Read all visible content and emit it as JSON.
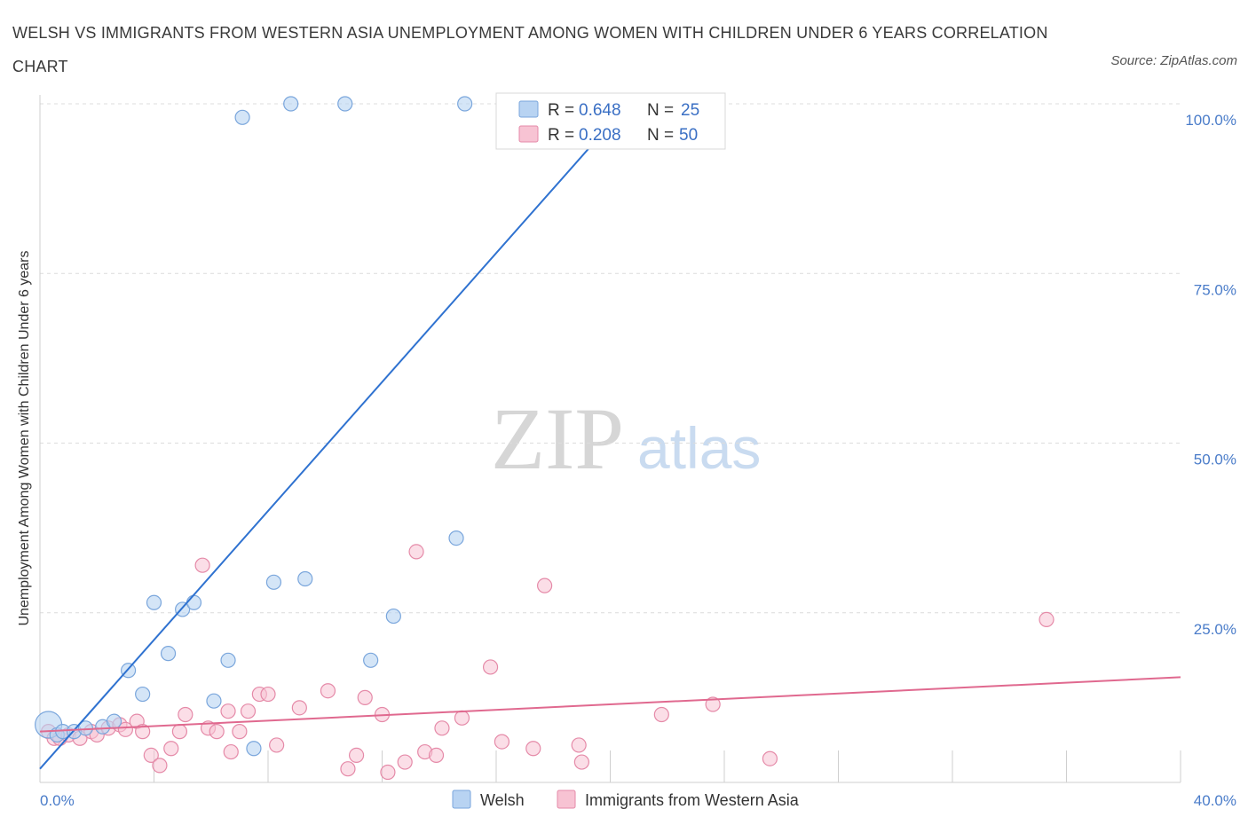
{
  "title": "WELSH VS IMMIGRANTS FROM WESTERN ASIA UNEMPLOYMENT AMONG WOMEN WITH CHILDREN UNDER 6 YEARS CORRELATION CHART",
  "source": "Source: ZipAtlas.com",
  "watermark": {
    "zip": "ZIP",
    "atlas": "atlas"
  },
  "colors": {
    "welsh_fill": "#b8d3f2",
    "welsh_stroke": "#7aa6dc",
    "welsh_line": "#2f72d0",
    "imm_fill": "#f7c3d3",
    "imm_stroke": "#e58aa8",
    "imm_line": "#e0698f",
    "tick_label": "#4a7cc9"
  },
  "legend": {
    "welsh": {
      "r_label": "R = ",
      "r_value": "0.648",
      "n_label": "N = ",
      "n_value": "25"
    },
    "imm": {
      "r_label": "R = ",
      "r_value": "0.208",
      "n_label": "N = ",
      "n_value": "50"
    }
  },
  "chart_data": {
    "type": "scatter",
    "title": "WELSH VS IMMIGRANTS FROM WESTERN ASIA UNEMPLOYMENT AMONG WOMEN WITH CHILDREN UNDER 6 YEARS CORRELATION CHART",
    "xlabel": "",
    "ylabel": "Unemployment Among Women with Children Under 6 years",
    "xlim": [
      0,
      40
    ],
    "ylim": [
      0,
      100
    ],
    "x_tick_labels": [
      "0.0%",
      "40.0%"
    ],
    "y_tick_labels": [
      "25.0%",
      "50.0%",
      "75.0%",
      "100.0%"
    ],
    "y_ticks": [
      25,
      50,
      75,
      100
    ],
    "grid": true,
    "legend_position": "top-center",
    "series": [
      {
        "name": "Welsh",
        "points": [
          [
            0.3,
            8.5
          ],
          [
            0.6,
            7.0
          ],
          [
            0.8,
            7.5
          ],
          [
            1.2,
            7.5
          ],
          [
            1.6,
            8.0
          ],
          [
            2.2,
            8.2
          ],
          [
            2.6,
            9.0
          ],
          [
            3.1,
            16.5
          ],
          [
            3.6,
            13.0
          ],
          [
            4.0,
            26.5
          ],
          [
            4.5,
            19.0
          ],
          [
            5.0,
            25.5
          ],
          [
            5.4,
            26.5
          ],
          [
            6.1,
            12.0
          ],
          [
            6.6,
            18.0
          ],
          [
            7.5,
            5.0
          ],
          [
            8.2,
            29.5
          ],
          [
            9.3,
            30.0
          ],
          [
            11.6,
            18.0
          ],
          [
            12.4,
            24.5
          ],
          [
            14.6,
            36.0
          ],
          [
            7.1,
            98.0
          ],
          [
            8.8,
            100.0
          ],
          [
            10.7,
            100.0
          ],
          [
            14.9,
            100.0
          ]
        ],
        "trend": {
          "x": [
            0,
            20
          ],
          "y": [
            2,
            97
          ]
        },
        "stats": {
          "R": 0.648,
          "N": 25
        }
      },
      {
        "name": "Immigrants from Western Asia",
        "points": [
          [
            0.3,
            7.5
          ],
          [
            0.5,
            6.5
          ],
          [
            0.7,
            6.5
          ],
          [
            1.0,
            7.0
          ],
          [
            1.4,
            6.5
          ],
          [
            1.8,
            7.5
          ],
          [
            2.0,
            7.0
          ],
          [
            2.4,
            8.0
          ],
          [
            2.8,
            8.5
          ],
          [
            3.0,
            7.8
          ],
          [
            3.4,
            9.0
          ],
          [
            3.6,
            7.5
          ],
          [
            3.9,
            4.0
          ],
          [
            4.2,
            2.5
          ],
          [
            4.6,
            5.0
          ],
          [
            4.9,
            7.5
          ],
          [
            5.1,
            10.0
          ],
          [
            5.7,
            32.0
          ],
          [
            5.9,
            8.0
          ],
          [
            6.2,
            7.5
          ],
          [
            6.6,
            10.5
          ],
          [
            6.7,
            4.5
          ],
          [
            7.0,
            7.5
          ],
          [
            7.3,
            10.5
          ],
          [
            7.7,
            13.0
          ],
          [
            8.0,
            13.0
          ],
          [
            8.3,
            5.5
          ],
          [
            9.1,
            11.0
          ],
          [
            10.1,
            13.5
          ],
          [
            10.8,
            2.0
          ],
          [
            11.1,
            4.0
          ],
          [
            11.4,
            12.5
          ],
          [
            12.0,
            10.0
          ],
          [
            12.2,
            1.5
          ],
          [
            12.8,
            3.0
          ],
          [
            13.2,
            34.0
          ],
          [
            13.5,
            4.5
          ],
          [
            13.9,
            4.0
          ],
          [
            14.1,
            8.0
          ],
          [
            14.8,
            9.5
          ],
          [
            15.8,
            17.0
          ],
          [
            16.2,
            6.0
          ],
          [
            17.3,
            5.0
          ],
          [
            17.7,
            29.0
          ],
          [
            18.9,
            5.5
          ],
          [
            19.0,
            3.0
          ],
          [
            21.8,
            10.0
          ],
          [
            23.6,
            11.5
          ],
          [
            25.6,
            3.5
          ],
          [
            35.3,
            24.0
          ]
        ],
        "trend": {
          "x": [
            0,
            40
          ],
          "y": [
            7.5,
            15.5
          ]
        },
        "stats": {
          "R": 0.208,
          "N": 50
        }
      }
    ]
  },
  "bottom_legend": {
    "welsh": "Welsh",
    "imm": "Immigrants from Western Asia"
  }
}
